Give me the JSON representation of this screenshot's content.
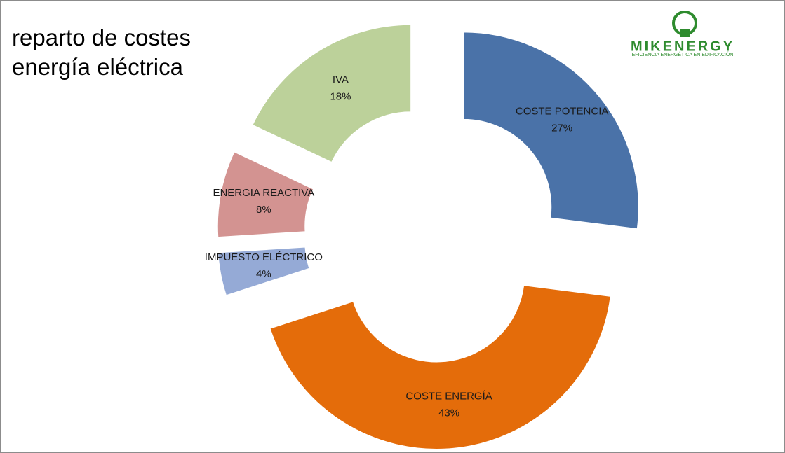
{
  "chart_data": {
    "type": "donut",
    "title": "reparto de costes energía eléctrica",
    "categories": [
      "COSTE  POTENCIA",
      "COSTE ENERGÍA",
      "IMPUESTO ELÉCTRICO",
      "ENERGIA REACTIVA",
      "IVA"
    ],
    "values": [
      27,
      43,
      4,
      8,
      18
    ],
    "value_labels": [
      "27%",
      "43%",
      "4%",
      "8%",
      "18%"
    ],
    "colors": [
      "#4a72a8",
      "#e46c0a",
      "#95aad6",
      "#d39391",
      "#bcd19a"
    ]
  },
  "logo": {
    "name": "MIKENERGY",
    "tagline": "EFICIENCIA ENERGÉTICA EN EDIFICACIÓN"
  }
}
